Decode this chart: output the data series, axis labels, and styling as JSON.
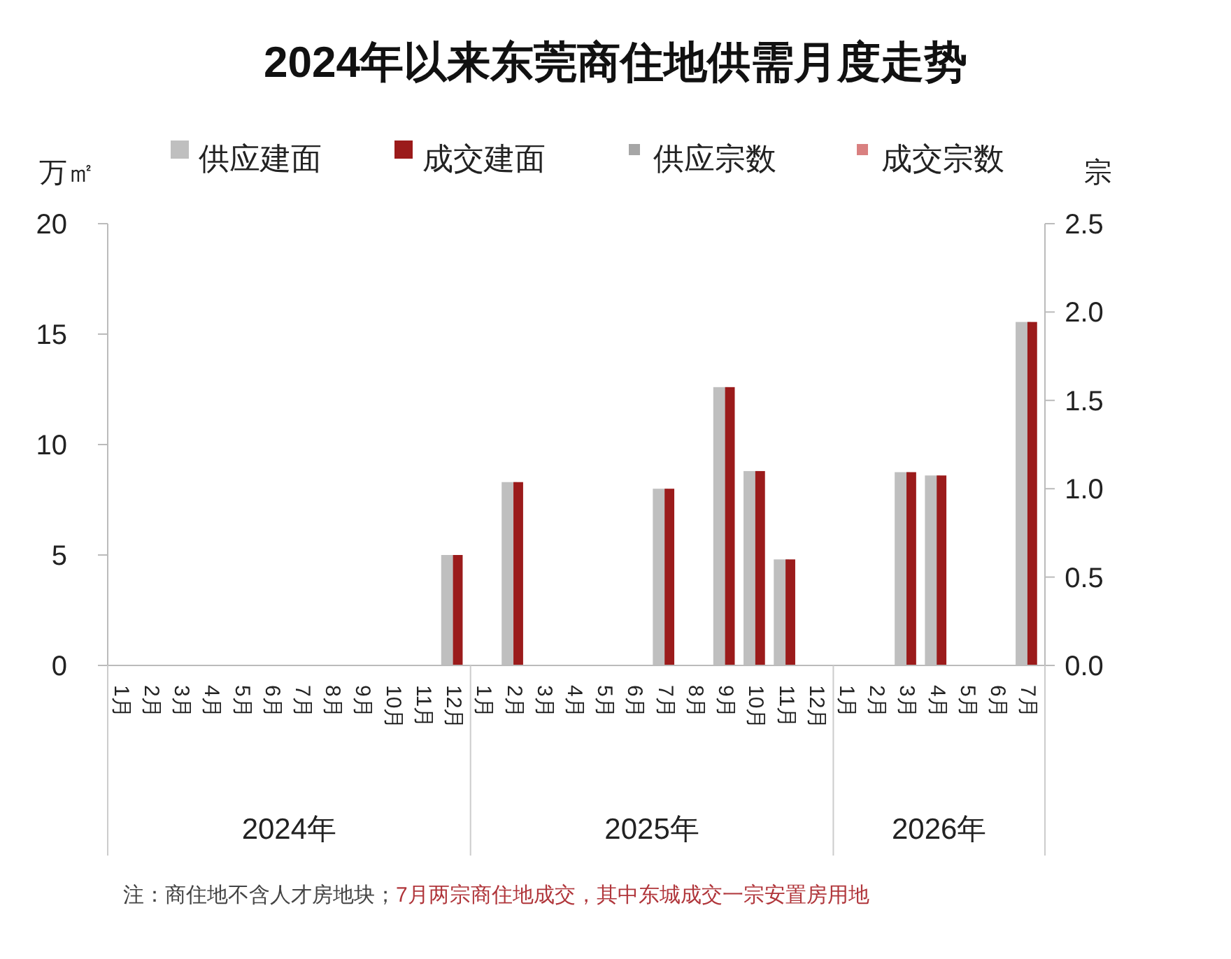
{
  "chart_data": {
    "type": "bar",
    "title": "2024年以来东莞商住地供需月度走势",
    "ylabel": "万㎡",
    "y2label": "宗",
    "categories": [
      "1月",
      "2月",
      "3月",
      "4月",
      "5月",
      "6月",
      "7月",
      "8月",
      "9月",
      "10月",
      "11月",
      "12月",
      "1月",
      "2月",
      "3月",
      "4月",
      "5月",
      "6月",
      "7月",
      "8月",
      "9月",
      "10月",
      "11月",
      "12月",
      "1月",
      "2月",
      "3月",
      "4月",
      "5月",
      "6月",
      "7月"
    ],
    "series": [
      {
        "name": "供应建面",
        "color": "#bfbfbf",
        "values": [
          0,
          0,
          0,
          0,
          0,
          0,
          0,
          0,
          0,
          0,
          0,
          5.0,
          0,
          8.3,
          0,
          0,
          0,
          0,
          8.0,
          0,
          12.6,
          8.8,
          4.8,
          0,
          0,
          0,
          8.75,
          8.6,
          0,
          0,
          15.55
        ]
      },
      {
        "name": "成交建面",
        "color": "#9b1b1b",
        "values": [
          0,
          0,
          0,
          0,
          0,
          0,
          0,
          0,
          0,
          0,
          0,
          5.0,
          0,
          8.3,
          0,
          0,
          0,
          0,
          8.0,
          0,
          12.6,
          8.8,
          4.8,
          0,
          0,
          0,
          8.75,
          8.6,
          0,
          0,
          15.55
        ]
      },
      {
        "name": "供应宗数",
        "color": "#a6a6a6",
        "values": [
          null,
          null,
          null,
          null,
          null,
          null,
          null,
          null,
          null,
          null,
          null,
          null,
          null,
          null,
          null,
          null,
          null,
          null,
          null,
          null,
          null,
          null,
          null,
          null,
          null,
          null,
          null,
          null,
          null,
          null,
          null
        ]
      },
      {
        "name": "成交宗数",
        "color": "#d98080",
        "values": [
          null,
          null,
          null,
          null,
          null,
          null,
          null,
          null,
          null,
          null,
          null,
          null,
          null,
          null,
          null,
          null,
          null,
          null,
          null,
          null,
          null,
          null,
          null,
          null,
          null,
          null,
          null,
          null,
          null,
          null,
          null
        ]
      }
    ],
    "ylim": [
      0,
      20
    ],
    "yticks": [
      0,
      5,
      10,
      15,
      20
    ],
    "y2lim": [
      0,
      2.5
    ],
    "y2ticks": [
      {
        "value": 0,
        "label": "0.0"
      },
      {
        "value": 0.5,
        "label": "0.5"
      },
      {
        "value": 1,
        "label": "1.0"
      },
      {
        "value": 1.5,
        "label": "1.5"
      },
      {
        "value": 2,
        "label": "2.0"
      },
      {
        "value": 2.5,
        "label": "2.5"
      }
    ],
    "legend": "top",
    "annotations": [
      "2024年",
      "2025年",
      "2026年",
      "注：商住地不含人才房地块；",
      "7月两宗商住地成交，其中东城成交一宗安置房用地"
    ]
  }
}
